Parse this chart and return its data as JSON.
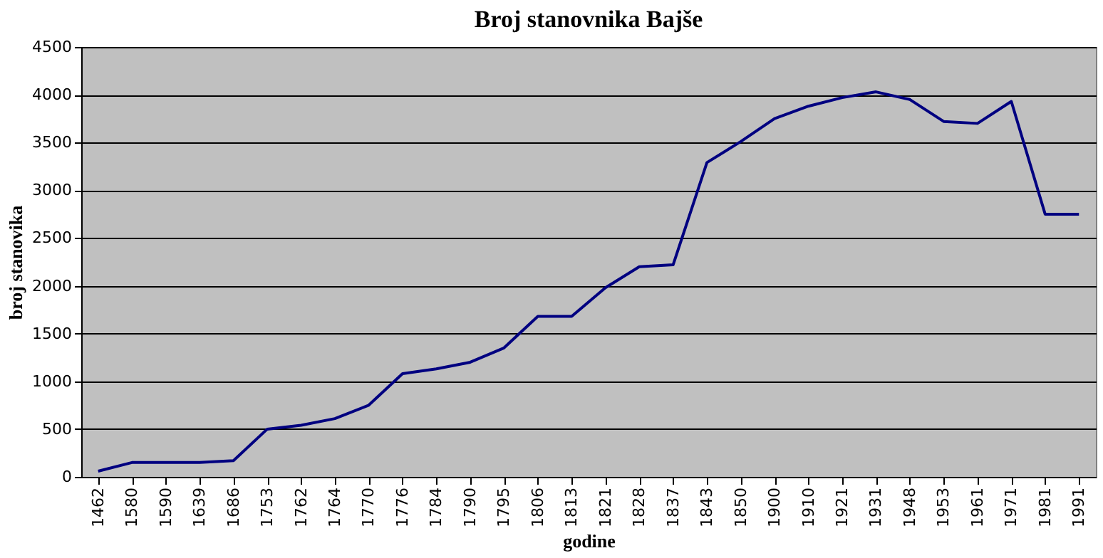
{
  "chart_data": {
    "type": "line",
    "title": "Broj stanovnika Bajše",
    "xlabel": "godine",
    "ylabel": "broj stanovika",
    "categories": [
      "1462",
      "1580",
      "1590",
      "1639",
      "1686",
      "1753",
      "1762",
      "1764",
      "1770",
      "1776",
      "1784",
      "1790",
      "1795",
      "1806",
      "1813",
      "1821",
      "1828",
      "1837",
      "1843",
      "1850",
      "1900",
      "1910",
      "1921",
      "1931",
      "1948",
      "1953",
      "1961",
      "1971",
      "1981",
      "1991"
    ],
    "series": [
      {
        "color": "#000080",
        "values": [
          60,
          150,
          150,
          150,
          170,
          500,
          540,
          610,
          750,
          1080,
          1130,
          1200,
          1350,
          1680,
          1680,
          1980,
          2200,
          2220,
          3290,
          3510,
          3750,
          3880,
          3970,
          4030,
          3950,
          3720,
          3700,
          3930,
          2750,
          2750
        ]
      }
    ],
    "ylim": [
      0,
      4500
    ],
    "yticks": [
      0,
      500,
      1000,
      1500,
      2000,
      2500,
      3000,
      3500,
      4000,
      4500
    ],
    "grid": "y",
    "marker": "none",
    "line_style": "solid"
  }
}
